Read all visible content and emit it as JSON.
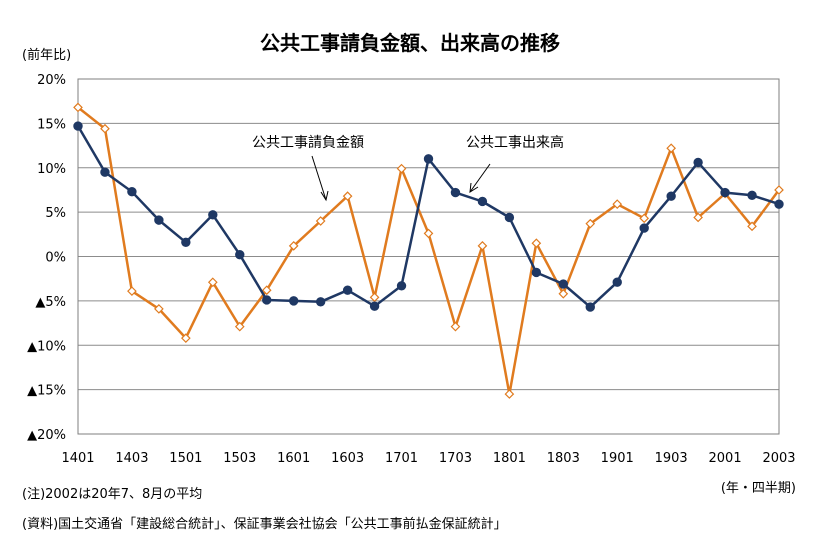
{
  "chart_data": {
    "type": "line",
    "title": "公共工事請負金額、出来高の推移",
    "ylabel": "(前年比)",
    "xlabel": "(年・四半期)",
    "ylim": [
      -20,
      20
    ],
    "y_ticks": [
      20,
      15,
      10,
      5,
      0,
      -5,
      -10,
      -15,
      -20
    ],
    "y_tick_labels": [
      "20%",
      "15%",
      "10%",
      "5%",
      "0%",
      "▲5%",
      "▲10%",
      "▲15%",
      "▲20%"
    ],
    "x": [
      "1401",
      "1402",
      "1403",
      "1404",
      "1501",
      "1502",
      "1503",
      "1504",
      "1601",
      "1602",
      "1603",
      "1604",
      "1701",
      "1702",
      "1703",
      "1704",
      "1801",
      "1802",
      "1803",
      "1804",
      "1901",
      "1902",
      "1903",
      "1904",
      "2001",
      "2002",
      "2003"
    ],
    "x_tick_labels": [
      "1401",
      "1403",
      "1501",
      "1503",
      "1601",
      "1603",
      "1701",
      "1703",
      "1801",
      "1803",
      "1901",
      "1903",
      "2001",
      "2003"
    ],
    "grid": "horizontal",
    "series": [
      {
        "name": "公共工事請負金額",
        "color": "#E07B1F",
        "marker": "diamond-open",
        "values": [
          16.8,
          14.4,
          -3.9,
          -5.9,
          -9.2,
          -2.9,
          -7.9,
          -3.8,
          1.2,
          4.0,
          6.8,
          -4.6,
          9.9,
          2.6,
          -7.9,
          1.2,
          -15.5,
          1.5,
          -4.2,
          3.7,
          5.9,
          4.3,
          12.2,
          4.4,
          7.1,
          3.4,
          7.5
        ]
      },
      {
        "name": "公共工事出来高",
        "color": "#1F3864",
        "marker": "circle-filled",
        "values": [
          14.7,
          9.5,
          7.3,
          4.1,
          1.6,
          4.7,
          0.2,
          -4.9,
          -5.0,
          -5.1,
          -3.8,
          -5.6,
          -3.3,
          11.0,
          7.2,
          6.2,
          4.4,
          -1.8,
          -3.1,
          -5.7,
          -2.9,
          3.2,
          6.8,
          10.6,
          7.2,
          6.9,
          5.9
        ]
      }
    ],
    "annotations": [
      {
        "text": "公共工事請負金額",
        "points_to": "1603"
      },
      {
        "text": "公共工事出来高",
        "points_to": "1703"
      }
    ],
    "notes": [
      "(注)2002は20年7、8月の平均",
      "(資料)国土交通省「建設総合統計」、保証事業会社協会「公共工事前払金保証統計」"
    ]
  }
}
